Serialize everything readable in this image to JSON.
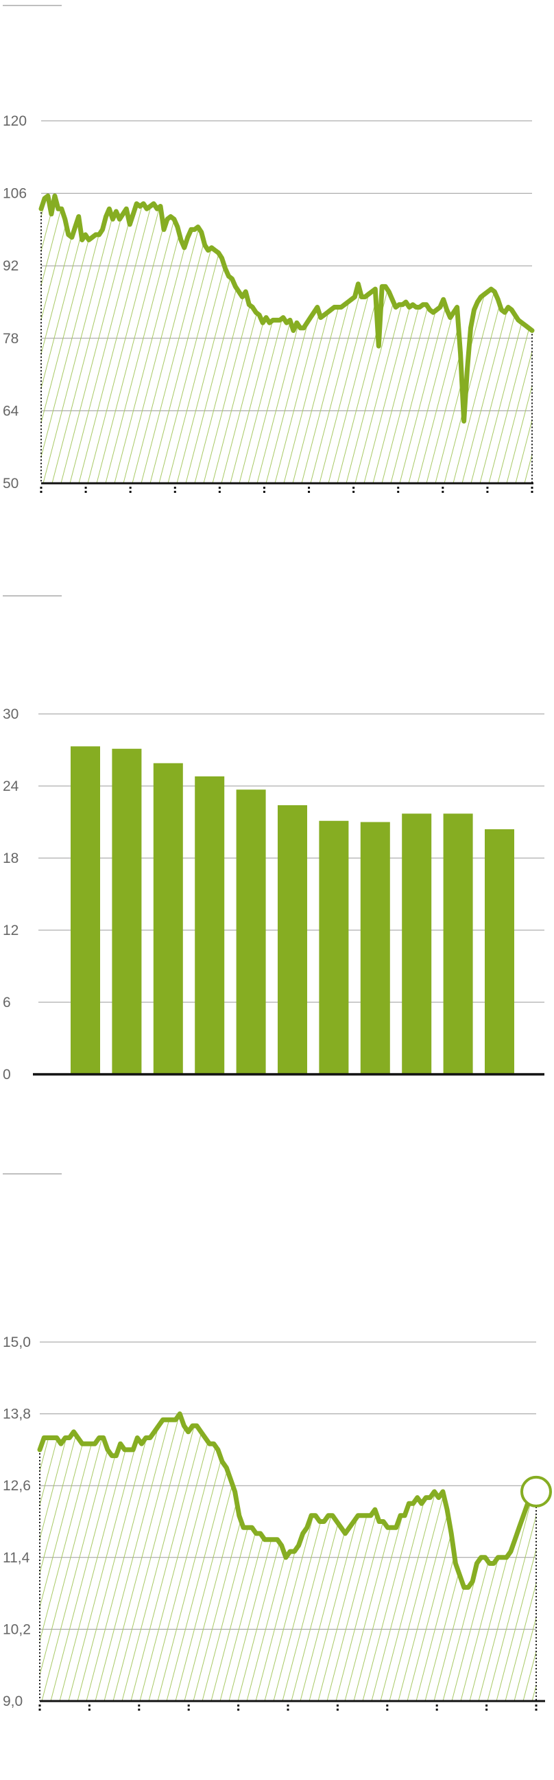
{
  "colors": {
    "accent": "#86ad22",
    "hatch": "#a8c964",
    "grid": "#9a9a9a",
    "axis": "#111111",
    "label": "#666666",
    "rule": "#aaaaaa"
  },
  "chart_data": [
    {
      "type": "area",
      "title": "",
      "xlabel": "",
      "ylabel": "",
      "ylim": [
        50,
        120
      ],
      "yticks": [
        50,
        64,
        78,
        92,
        106,
        120
      ],
      "ytick_labels": [
        "50",
        "64",
        "78",
        "92",
        "106",
        "120"
      ],
      "xtick_count": 12,
      "grid": true,
      "values": [
        103,
        105,
        105.5,
        102,
        105.5,
        103,
        103,
        101,
        98,
        97.5,
        99.5,
        101.5,
        97,
        98,
        97,
        97.5,
        98,
        98,
        99,
        101.5,
        103,
        101,
        102.5,
        101,
        102,
        103,
        100,
        102,
        104,
        103.5,
        104,
        103,
        103.5,
        104,
        103,
        103.5,
        99,
        101,
        101.5,
        101,
        99.5,
        97,
        95.5,
        97.5,
        99,
        99,
        99.5,
        98.5,
        96,
        95,
        95.5,
        95,
        94.5,
        93.5,
        91.5,
        90,
        89.5,
        88,
        87,
        86,
        87,
        84.5,
        84,
        83,
        82.5,
        81,
        82,
        81,
        81.5,
        81.5,
        81.5,
        82,
        81,
        81.5,
        79.5,
        81,
        80,
        80,
        81,
        82,
        83,
        84,
        82,
        82.5,
        83,
        83.5,
        84,
        84,
        84,
        84.5,
        85,
        85.5,
        86,
        88.5,
        86,
        86,
        86.5,
        87,
        87.5,
        76.5,
        88,
        88,
        87,
        85.5,
        84,
        84.5,
        84.5,
        85,
        84,
        84.5,
        84,
        84,
        84.5,
        84.5,
        83.5,
        83,
        83.5,
        84,
        85.5,
        83.5,
        82,
        83,
        84,
        75,
        62,
        72,
        80,
        83.5,
        85,
        86,
        86.5,
        87,
        87.5,
        87,
        85.5,
        83.5,
        83,
        84,
        83.5,
        82.5,
        81.5,
        81,
        80.5,
        80,
        79.5
      ]
    },
    {
      "type": "bar",
      "title": "",
      "xlabel": "",
      "ylabel": "",
      "ylim": [
        0,
        30
      ],
      "yticks": [
        0,
        6,
        12,
        18,
        24,
        30
      ],
      "ytick_labels": [
        "0",
        "6",
        "12",
        "18",
        "24",
        "30"
      ],
      "grid": true,
      "values": [
        27.3,
        27.1,
        25.9,
        24.8,
        23.7,
        22.4,
        21.1,
        21.0,
        21.7,
        21.7,
        20.4
      ]
    },
    {
      "type": "area",
      "title": "",
      "xlabel": "",
      "ylabel": "",
      "ylim": [
        9.0,
        15.0
      ],
      "yticks": [
        9.0,
        10.2,
        11.4,
        12.6,
        13.8,
        15.0
      ],
      "ytick_labels": [
        "9,0",
        "10,2",
        "11,4",
        "12,6",
        "13,8",
        "15,0"
      ],
      "xtick_count": 11,
      "grid": true,
      "values": [
        13.2,
        13.4,
        13.4,
        13.4,
        13.4,
        13.3,
        13.4,
        13.4,
        13.5,
        13.4,
        13.3,
        13.3,
        13.3,
        13.3,
        13.4,
        13.4,
        13.2,
        13.1,
        13.1,
        13.3,
        13.2,
        13.2,
        13.2,
        13.4,
        13.3,
        13.4,
        13.4,
        13.5,
        13.6,
        13.7,
        13.7,
        13.7,
        13.7,
        13.8,
        13.6,
        13.5,
        13.6,
        13.6,
        13.5,
        13.4,
        13.3,
        13.3,
        13.2,
        13.0,
        12.9,
        12.7,
        12.5,
        12.1,
        11.9,
        11.9,
        11.9,
        11.8,
        11.8,
        11.7,
        11.7,
        11.7,
        11.7,
        11.6,
        11.4,
        11.5,
        11.5,
        11.6,
        11.8,
        11.9,
        12.1,
        12.1,
        12.0,
        12.0,
        12.1,
        12.1,
        12.0,
        11.9,
        11.8,
        11.9,
        12.0,
        12.1,
        12.1,
        12.1,
        12.1,
        12.2,
        12.0,
        12.0,
        11.9,
        11.9,
        11.9,
        12.1,
        12.1,
        12.3,
        12.3,
        12.4,
        12.3,
        12.4,
        12.4,
        12.5,
        12.4,
        12.5,
        12.2,
        11.8,
        11.3,
        11.1,
        10.9,
        10.9,
        11.0,
        11.3,
        11.4,
        11.4,
        11.3,
        11.3,
        11.4,
        11.4,
        11.4,
        11.5,
        11.7,
        11.9,
        12.1,
        12.3,
        12.4,
        12.5
      ]
    }
  ]
}
